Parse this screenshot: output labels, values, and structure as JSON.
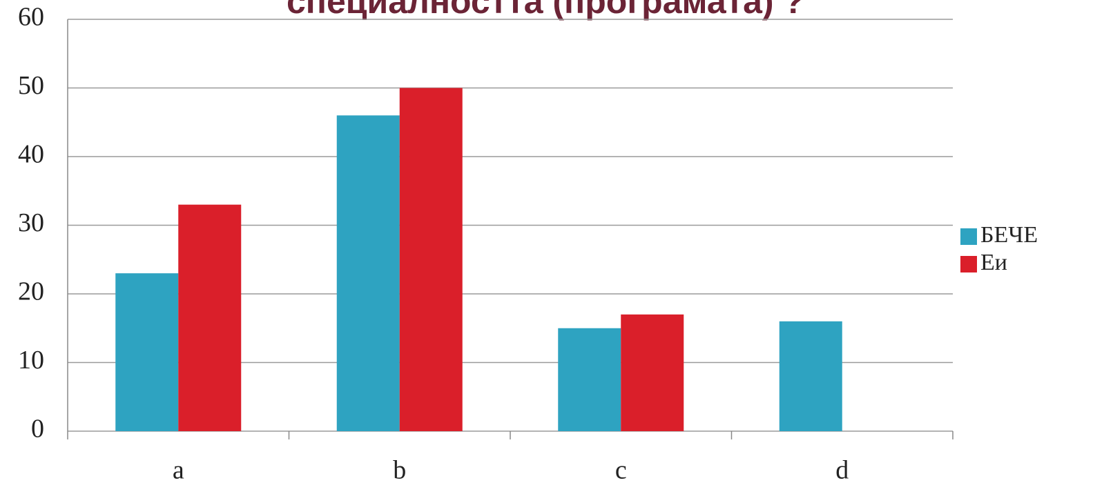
{
  "chart_data": {
    "type": "bar",
    "title": "специалността (програмата) ?",
    "categories": [
      "a",
      "b",
      "c",
      "d"
    ],
    "series": [
      {
        "name": "БЕЧЕ",
        "color": "#2ea3c1",
        "values": [
          23,
          46,
          15,
          16
        ]
      },
      {
        "name": "Еи",
        "color": "#da1f2a",
        "values": [
          33,
          50,
          17,
          null
        ]
      }
    ],
    "ylim": [
      0,
      60
    ],
    "yticks": [
      0,
      10,
      20,
      30,
      40,
      50,
      60
    ],
    "grid": true,
    "legend": "right"
  }
}
